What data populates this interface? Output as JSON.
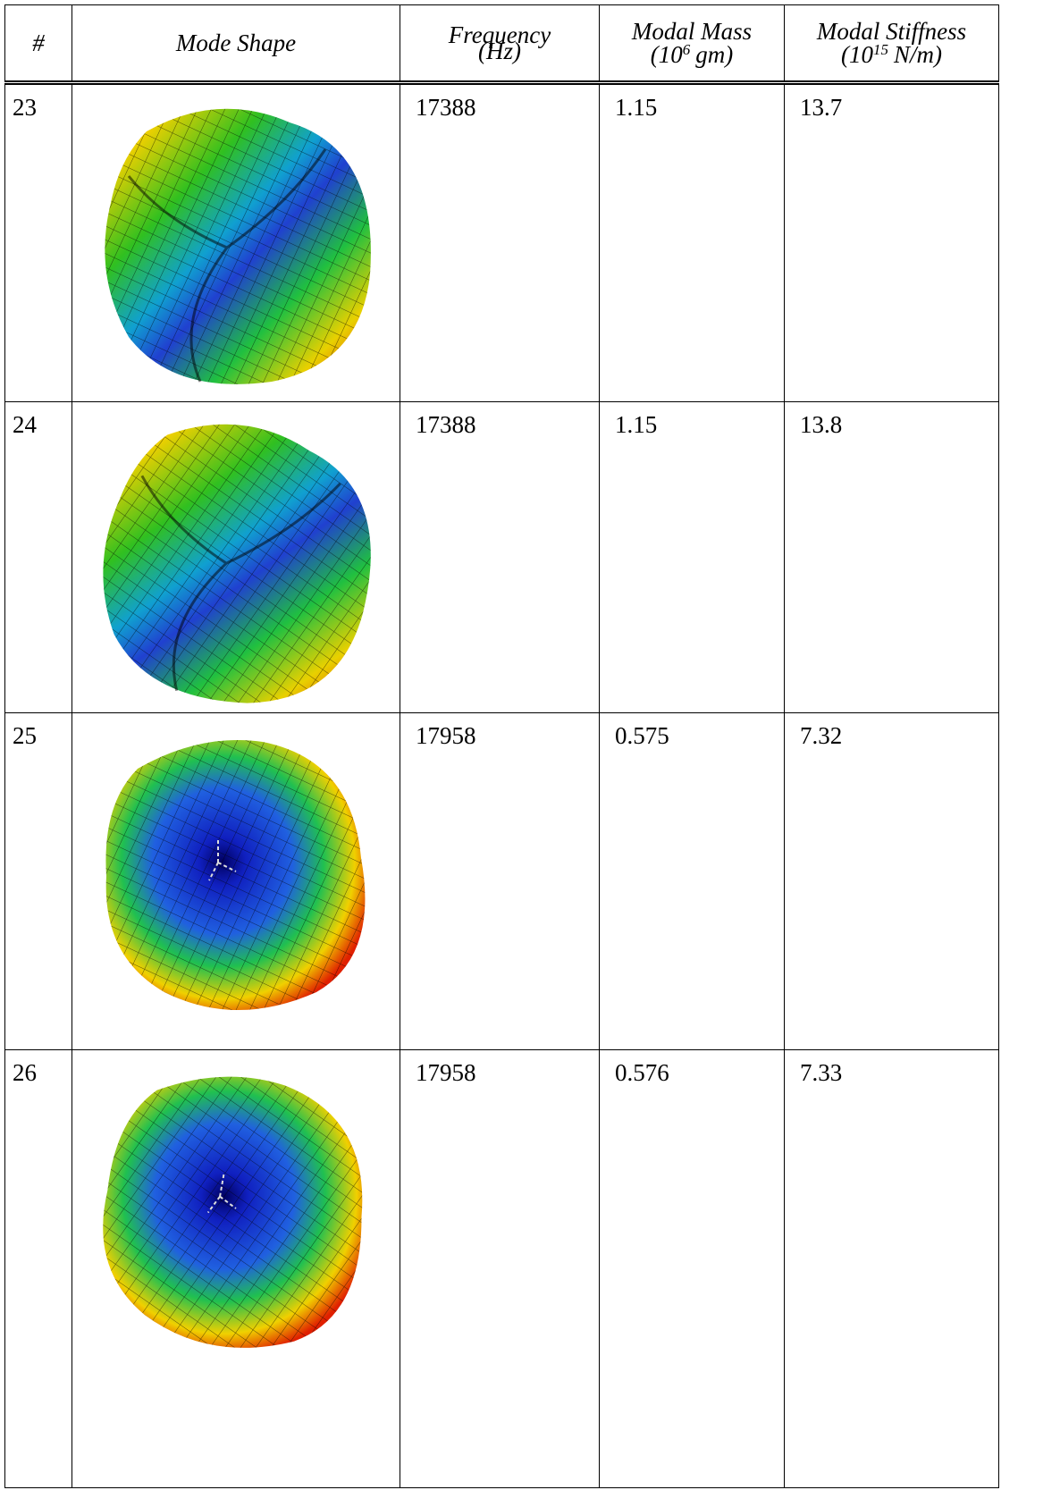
{
  "table": {
    "header": [
      {
        "text": "#"
      },
      {
        "text": "Mode Shape"
      },
      {
        "line1": "Frequency",
        "line2": "(Hz)"
      },
      {
        "line1": "Modal Mass",
        "pre": "(10",
        "sup": "6",
        "post": "gm)"
      },
      {
        "line1": "Modal Stiffness",
        "pre": "(10",
        "sup": "15",
        "post": "N/m)"
      }
    ],
    "rows": [
      [
        23,
        17388,
        1.15,
        13.7
      ],
      [
        24,
        17388,
        1.15,
        13.8
      ],
      [
        25,
        17958,
        0.575,
        7.32
      ],
      [
        26,
        17958,
        0.576,
        7.33
      ]
    ]
  }
}
